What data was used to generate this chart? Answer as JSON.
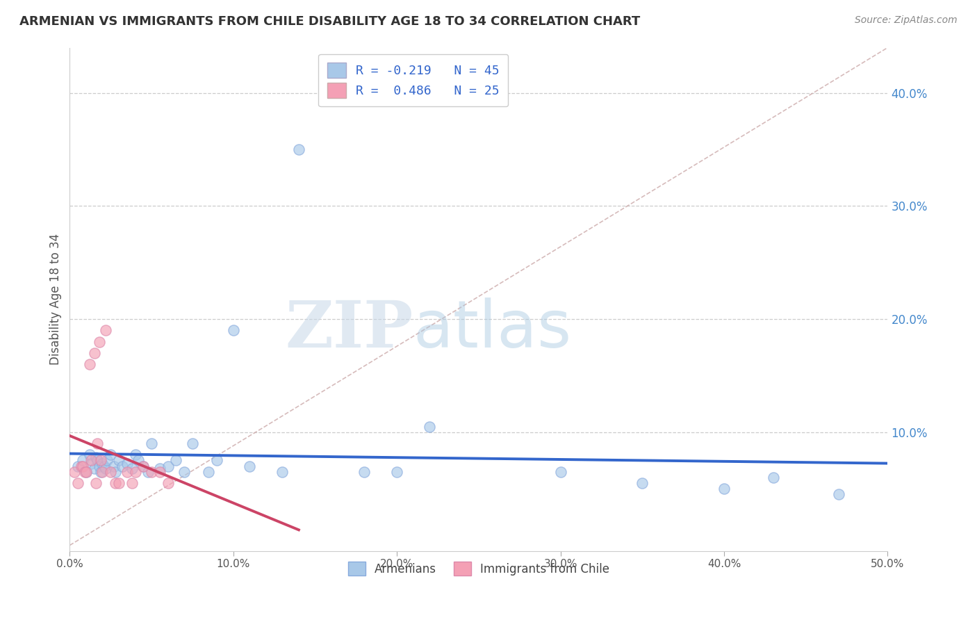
{
  "title": "ARMENIAN VS IMMIGRANTS FROM CHILE DISABILITY AGE 18 TO 34 CORRELATION CHART",
  "source_text": "Source: ZipAtlas.com",
  "ylabel": "Disability Age 18 to 34",
  "xlim": [
    0.0,
    0.5
  ],
  "ylim": [
    -0.005,
    0.44
  ],
  "xticks": [
    0.0,
    0.1,
    0.2,
    0.3,
    0.4,
    0.5
  ],
  "xtick_labels": [
    "0.0%",
    "10.0%",
    "20.0%",
    "30.0%",
    "40.0%",
    "50.0%"
  ],
  "yticks": [
    0.1,
    0.2,
    0.3,
    0.4
  ],
  "ytick_labels": [
    "10.0%",
    "20.0%",
    "30.0%",
    "40.0%"
  ],
  "legend_labels": [
    "Armenians",
    "Immigrants from Chile"
  ],
  "legend_r_n": [
    [
      "R = -0.219",
      "N = 45"
    ],
    [
      "R =  0.486",
      "N = 25"
    ]
  ],
  "blue_color": "#a8c8e8",
  "pink_color": "#f4a0b5",
  "blue_line_color": "#3366cc",
  "pink_line_color": "#cc4466",
  "ref_line_color": "#ccaaaa",
  "watermark_zip": "ZIP",
  "watermark_atlas": "atlas",
  "armenians_x": [
    0.005,
    0.008,
    0.01,
    0.012,
    0.013,
    0.015,
    0.016,
    0.017,
    0.018,
    0.019,
    0.02,
    0.021,
    0.022,
    0.023,
    0.025,
    0.027,
    0.028,
    0.03,
    0.032,
    0.035,
    0.038,
    0.04,
    0.042,
    0.045,
    0.048,
    0.05,
    0.055,
    0.06,
    0.065,
    0.07,
    0.075,
    0.085,
    0.09,
    0.1,
    0.11,
    0.13,
    0.14,
    0.18,
    0.2,
    0.22,
    0.3,
    0.35,
    0.4,
    0.43,
    0.47
  ],
  "armenians_y": [
    0.07,
    0.075,
    0.065,
    0.08,
    0.072,
    0.068,
    0.078,
    0.075,
    0.07,
    0.065,
    0.072,
    0.07,
    0.068,
    0.075,
    0.08,
    0.07,
    0.065,
    0.075,
    0.07,
    0.072,
    0.068,
    0.08,
    0.075,
    0.07,
    0.065,
    0.09,
    0.068,
    0.07,
    0.075,
    0.065,
    0.09,
    0.065,
    0.075,
    0.19,
    0.07,
    0.065,
    0.35,
    0.065,
    0.065,
    0.105,
    0.065,
    0.055,
    0.05,
    0.06,
    0.045
  ],
  "chile_x": [
    0.003,
    0.005,
    0.007,
    0.008,
    0.009,
    0.01,
    0.012,
    0.013,
    0.015,
    0.016,
    0.017,
    0.018,
    0.019,
    0.02,
    0.022,
    0.025,
    0.028,
    0.03,
    0.035,
    0.038,
    0.04,
    0.045,
    0.05,
    0.055,
    0.06
  ],
  "chile_y": [
    0.065,
    0.055,
    0.07,
    0.07,
    0.065,
    0.065,
    0.16,
    0.075,
    0.17,
    0.055,
    0.09,
    0.18,
    0.075,
    0.065,
    0.19,
    0.065,
    0.055,
    0.055,
    0.065,
    0.055,
    0.065,
    0.07,
    0.065,
    0.065,
    0.055
  ]
}
